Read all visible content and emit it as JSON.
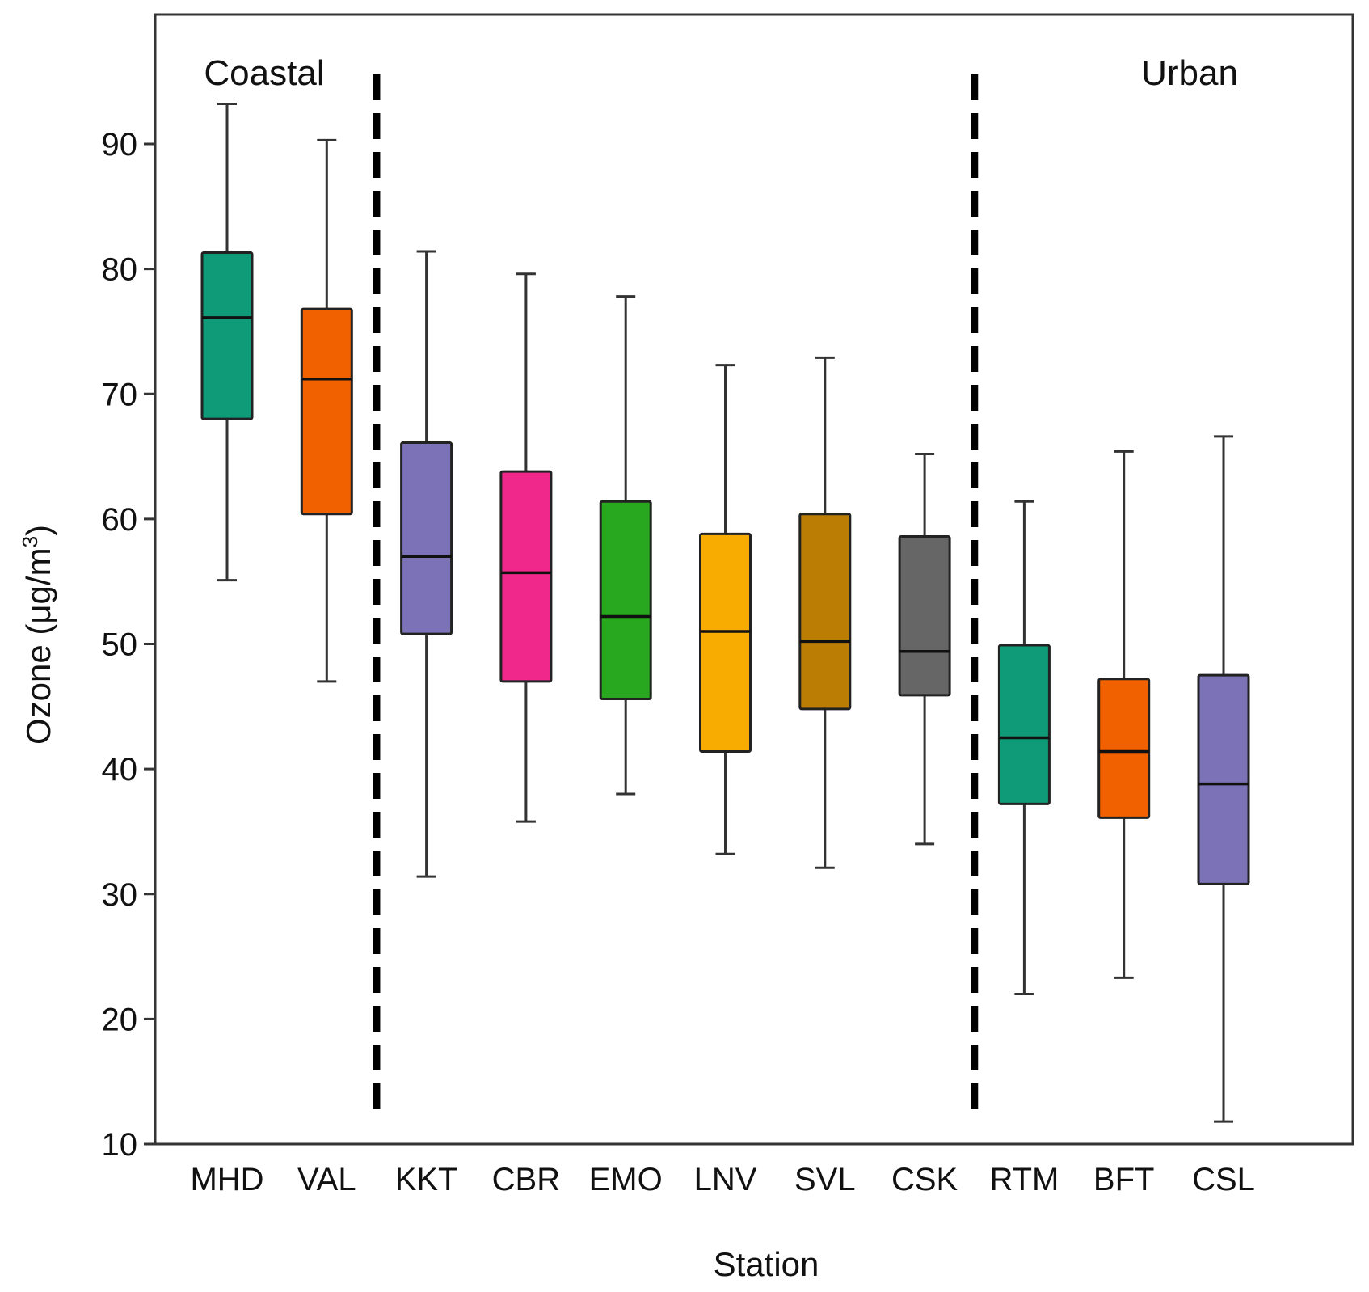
{
  "chart_data": {
    "type": "box",
    "title": "",
    "xlabel": "Station",
    "ylabel": "Ozone (μg/m",
    "ylabel_superscript": "3",
    "ylabel_close": ")",
    "ylim": [
      10,
      97
    ],
    "yticks": [
      10,
      20,
      30,
      40,
      50,
      60,
      70,
      80,
      90
    ],
    "grid": false,
    "regions": [
      {
        "label": "Coastal",
        "position": "top-left"
      },
      {
        "label": "Urban",
        "position": "top-right"
      }
    ],
    "dividers_after_index": [
      1,
      7
    ],
    "categories": [
      "MHD",
      "VAL",
      "KKT",
      "CBR",
      "EMO",
      "LNV",
      "SVL",
      "CSK",
      "RTM",
      "BFT",
      "CSL"
    ],
    "boxes": [
      {
        "station": "MHD",
        "min": 55.1,
        "q1": 68.0,
        "median": 76.1,
        "q3": 81.3,
        "max": 93.2,
        "color": "#0f9a78"
      },
      {
        "station": "VAL",
        "min": 47.0,
        "q1": 60.4,
        "median": 71.2,
        "q3": 76.8,
        "max": 90.3,
        "color": "#f26100"
      },
      {
        "station": "KKT",
        "min": 31.4,
        "q1": 50.8,
        "median": 57.0,
        "q3": 66.1,
        "max": 81.4,
        "color": "#7b72b8"
      },
      {
        "station": "CBR",
        "min": 35.8,
        "q1": 47.0,
        "median": 55.7,
        "q3": 63.8,
        "max": 79.6,
        "color": "#f0288c"
      },
      {
        "station": "EMO",
        "min": 38.0,
        "q1": 45.6,
        "median": 52.2,
        "q3": 61.4,
        "max": 77.8,
        "color": "#27a81e"
      },
      {
        "station": "LNV",
        "min": 33.2,
        "q1": 41.4,
        "median": 51.0,
        "q3": 58.8,
        "max": 72.3,
        "color": "#f8ab00"
      },
      {
        "station": "SVL",
        "min": 32.1,
        "q1": 44.8,
        "median": 50.2,
        "q3": 60.4,
        "max": 72.9,
        "color": "#bb7d04"
      },
      {
        "station": "CSK",
        "min": 34.0,
        "q1": 45.9,
        "median": 49.4,
        "q3": 58.6,
        "max": 65.2,
        "color": "#666666"
      },
      {
        "station": "RTM",
        "min": 22.0,
        "q1": 37.2,
        "median": 42.5,
        "q3": 49.9,
        "max": 61.4,
        "color": "#0f9a78"
      },
      {
        "station": "BFT",
        "min": 23.3,
        "q1": 36.1,
        "median": 41.4,
        "q3": 47.2,
        "max": 65.4,
        "color": "#f26100"
      },
      {
        "station": "CSL",
        "min": 11.8,
        "q1": 30.8,
        "median": 38.8,
        "q3": 47.5,
        "max": 66.6,
        "color": "#7b72b8"
      }
    ]
  }
}
